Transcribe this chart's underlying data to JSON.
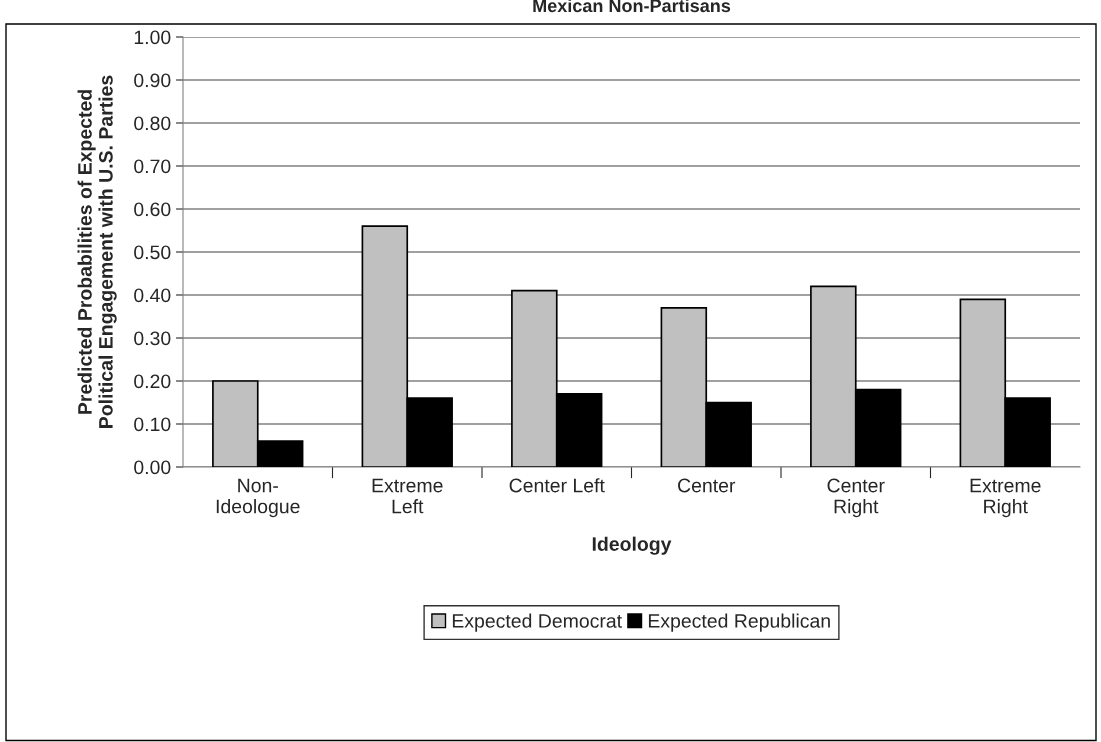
{
  "chart_data": {
    "type": "bar",
    "title": "Mexican Non-Partisans",
    "xlabel": "Ideology",
    "ylabel": "Predicted Probabilities of Expected\nPolitical Engagement with U.S. Parties",
    "categories": [
      "Non-\nIdeologue",
      "Extreme\nLeft",
      "Center Left",
      "Center",
      "Center\nRight",
      "Extreme\nRight"
    ],
    "series": [
      {
        "name": "Expected Democrat",
        "color": "#c0c0c0",
        "values": [
          0.2,
          0.56,
          0.41,
          0.37,
          0.42,
          0.39
        ]
      },
      {
        "name": "Expected Republican",
        "color": "#000000",
        "values": [
          0.06,
          0.16,
          0.17,
          0.15,
          0.18,
          0.16
        ]
      }
    ],
    "ylim": [
      0,
      1.0
    ],
    "yticks": [
      {
        "value": 0,
        "label": "0.00"
      },
      {
        "value": 0.1,
        "label": "0.10"
      },
      {
        "value": 0.2,
        "label": "0.20"
      },
      {
        "value": 0.3,
        "label": "0.30"
      },
      {
        "value": 0.4,
        "label": "0.40"
      },
      {
        "value": 0.5,
        "label": "0.50"
      },
      {
        "value": 0.6,
        "label": "0.60"
      },
      {
        "value": 0.7,
        "label": "0.70"
      },
      {
        "value": 0.8,
        "label": "0.80"
      },
      {
        "value": 0.9,
        "label": "0.90"
      },
      {
        "value": 1.0,
        "label": "1.00"
      }
    ],
    "grid": "y",
    "legend": "bottom"
  }
}
